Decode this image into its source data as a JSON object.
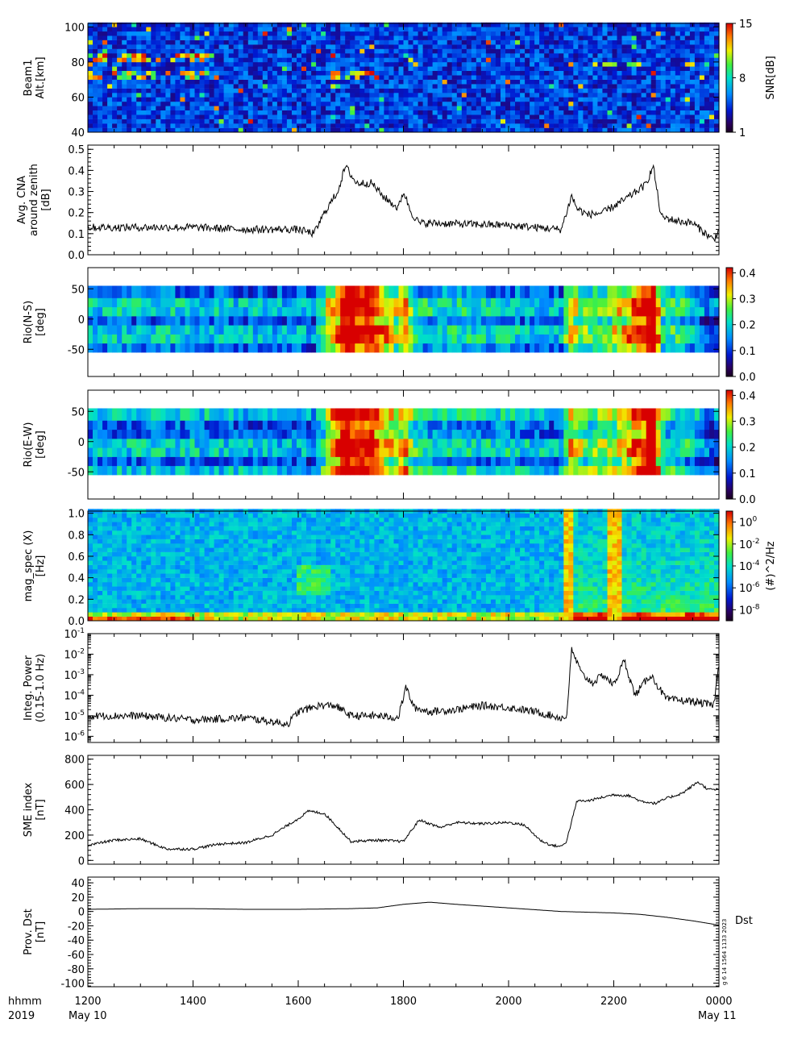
{
  "chart_data": [
    {
      "type": "heatmap",
      "ylabel": [
        "Beam1",
        "Alt.[km]"
      ],
      "yticks": [
        "40",
        "60",
        "80",
        "100"
      ],
      "ylim": [
        40,
        102
      ],
      "colorbar": {
        "label": "SNR[dB]",
        "ticks": [
          "1",
          "8",
          "15"
        ],
        "range": [
          1,
          15
        ]
      }
    },
    {
      "type": "line",
      "ylabel": [
        "Avg. CNA",
        "around zenith",
        "[dB]"
      ],
      "yticks": [
        "0.0",
        "0.1",
        "0.2",
        "0.3",
        "0.4",
        "0.5"
      ],
      "ylim": [
        0,
        0.52
      ],
      "x_hours": [
        12.0,
        14.0,
        15.0,
        16.0,
        16.3,
        16.5,
        16.75,
        16.9,
        17.1,
        17.4,
        17.6,
        17.9,
        18.0,
        18.15,
        18.3,
        18.5,
        20.0,
        21.0,
        21.2,
        21.3,
        21.5,
        21.8,
        22.2,
        22.6,
        22.75,
        22.9,
        23.2,
        23.5,
        23.9,
        24.0
      ],
      "values": [
        0.13,
        0.13,
        0.12,
        0.12,
        0.1,
        0.2,
        0.3,
        0.42,
        0.34,
        0.34,
        0.28,
        0.22,
        0.3,
        0.2,
        0.15,
        0.15,
        0.14,
        0.12,
        0.28,
        0.22,
        0.19,
        0.2,
        0.26,
        0.33,
        0.42,
        0.18,
        0.16,
        0.15,
        0.07,
        0.12
      ]
    },
    {
      "type": "heatmap",
      "ylabel": [
        "Rio(N-S)",
        "[deg]"
      ],
      "yticks": [
        "-50",
        "0",
        "50"
      ],
      "ylim": [
        -95,
        85
      ],
      "colorbar": {
        "ticks": [
          "0.0",
          "0.1",
          "0.2",
          "0.3",
          "0.4"
        ],
        "range": [
          0,
          0.42
        ]
      }
    },
    {
      "type": "heatmap",
      "ylabel": [
        "Rio(E-W)",
        "[deg]"
      ],
      "yticks": [
        "-50",
        "0",
        "50"
      ],
      "ylim": [
        -95,
        85
      ],
      "colorbar": {
        "ticks": [
          "0.0",
          "0.1",
          "0.2",
          "0.3",
          "0.4"
        ],
        "range": [
          0,
          0.42
        ]
      }
    },
    {
      "type": "heatmap",
      "ylabel": [
        "mag_spec (X)",
        "[Hz]"
      ],
      "yticks": [
        "0.0",
        "0.2",
        "0.4",
        "0.6",
        "0.8",
        "1.0"
      ],
      "ylim": [
        0,
        1.02
      ],
      "colorbar": {
        "label": "(#)^2/Hz",
        "ticks": [
          "10^0",
          "10^-2",
          "10^-4",
          "10^-6",
          "10^-8"
        ],
        "range": [
          -9,
          1
        ]
      }
    },
    {
      "type": "line",
      "scale": "log",
      "ylabel": [
        "Integ. Power",
        "(0.15-1.0 Hz)"
      ],
      "yticks": [
        "10^-1",
        "10^-2",
        "10^-3",
        "10^-4",
        "10^-5",
        "10^-6"
      ],
      "ylim_log10": [
        -6.3,
        -1
      ],
      "x_hours": [
        12.0,
        13.0,
        14.0,
        15.0,
        15.8,
        16.0,
        16.4,
        16.7,
        17.0,
        17.5,
        17.9,
        18.05,
        18.2,
        18.5,
        19.0,
        19.5,
        20.0,
        20.5,
        21.0,
        21.1,
        21.2,
        21.4,
        21.6,
        21.8,
        22.0,
        22.2,
        22.4,
        22.7,
        23.0,
        23.5,
        23.9,
        24.0
      ],
      "log10_values": [
        -5.0,
        -5.0,
        -5.2,
        -5.1,
        -5.4,
        -4.8,
        -4.5,
        -4.5,
        -5.0,
        -5.0,
        -5.1,
        -3.6,
        -4.6,
        -4.8,
        -4.7,
        -4.5,
        -4.6,
        -4.8,
        -5.1,
        -5.1,
        -1.8,
        -3.0,
        -3.4,
        -3.0,
        -3.5,
        -2.3,
        -4.0,
        -3.0,
        -4.2,
        -4.3,
        -4.5,
        -2.5
      ]
    },
    {
      "type": "line",
      "ylabel": [
        "SME index",
        "[nT]"
      ],
      "yticks": [
        "0",
        "200",
        "400",
        "600",
        "800"
      ],
      "ylim": [
        -30,
        830
      ],
      "x_hours": [
        12.0,
        12.5,
        13.0,
        13.5,
        14.0,
        14.5,
        15.0,
        15.5,
        16.0,
        16.2,
        16.5,
        16.8,
        17.0,
        17.5,
        18.0,
        18.3,
        18.7,
        19.0,
        19.5,
        20.0,
        20.3,
        20.6,
        20.8,
        21.0,
        21.1,
        21.3,
        21.5,
        22.0,
        22.3,
        22.5,
        22.8,
        23.0,
        23.3,
        23.6,
        23.8,
        24.0
      ],
      "values": [
        120,
        160,
        170,
        90,
        90,
        130,
        140,
        200,
        330,
        390,
        370,
        240,
        150,
        160,
        150,
        320,
        260,
        300,
        290,
        300,
        280,
        160,
        120,
        110,
        150,
        470,
        470,
        520,
        510,
        470,
        450,
        490,
        530,
        620,
        560,
        560
      ]
    },
    {
      "type": "line",
      "ylabel": [
        "Prov. Dst",
        "[nT]"
      ],
      "yticks": [
        "-100",
        "-80",
        "-60",
        "-40",
        "-20",
        "0",
        "20",
        "40"
      ],
      "ylim": [
        -105,
        48
      ],
      "x_hours": [
        12.0,
        13.0,
        14.0,
        15.0,
        16.0,
        17.0,
        17.5,
        18.0,
        18.5,
        19.0,
        20.0,
        21.0,
        22.0,
        22.5,
        23.0,
        23.5,
        24.0
      ],
      "values": [
        3,
        4,
        4,
        3,
        3,
        4,
        5,
        10,
        13,
        10,
        5,
        0,
        -2,
        -4,
        -8,
        -13,
        -19
      ],
      "series_label": "Dst",
      "stamp": "g 6 14 1564 1133 2023"
    }
  ],
  "xaxis": {
    "ticks": [
      "1200",
      "1400",
      "1600",
      "1800",
      "2000",
      "2200",
      "0000"
    ],
    "range_hours": [
      12,
      24
    ],
    "row1_label": "hhmm",
    "row2_label": "2019",
    "date_start": "May 10",
    "date_end": "May 11"
  }
}
